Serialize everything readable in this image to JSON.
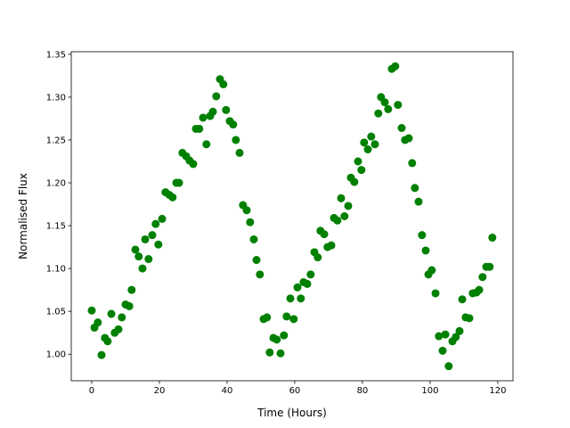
{
  "chart_data": {
    "type": "scatter",
    "xlabel": "Time (Hours)",
    "ylabel": "Normalised Flux",
    "color": "#008000",
    "x": [
      0,
      0.8,
      1.8,
      2.9,
      3.9,
      4.7,
      5.8,
      6.8,
      7.9,
      8.9,
      10,
      11.1,
      11.8,
      12.9,
      13.9,
      15,
      15.8,
      16.8,
      17.9,
      18.9,
      19.7,
      20.8,
      21.8,
      22.9,
      23.9,
      25,
      25.8,
      26.8,
      27.9,
      28.9,
      30,
      30.8,
      31.8,
      32.9,
      33.9,
      35,
      35.8,
      36.8,
      37.9,
      38.9,
      39.7,
      40.8,
      41.8,
      42.6,
      43.7,
      44.7,
      45.8,
      46.8,
      47.9,
      48.7,
      49.7,
      50.8,
      51.8,
      52.6,
      53.7,
      54.7,
      55.8,
      56.8,
      57.6,
      58.7,
      59.7,
      60.8,
      61.8,
      62.6,
      63.7,
      64.7,
      65.8,
      66.8,
      67.6,
      68.7,
      69.7,
      70.8,
      71.6,
      72.6,
      73.7,
      74.7,
      75.8,
      76.6,
      77.6,
      78.7,
      79.7,
      80.5,
      81.6,
      82.6,
      83.7,
      84.7,
      85.5,
      86.6,
      87.6,
      88.7,
      89.7,
      90.5,
      91.6,
      92.6,
      93.7,
      94.7,
      95.5,
      96.6,
      97.6,
      98.7,
      99.5,
      100.5,
      101.6,
      102.6,
      103.7,
      104.5,
      105.5,
      106.6,
      107.6,
      108.7,
      109.5,
      110.5,
      111.6,
      112.6,
      113.7,
      114.5,
      115.5,
      116.6,
      117.6,
      118.4
    ],
    "values": [
      1.051,
      1.031,
      1.037,
      0.999,
      1.019,
      1.015,
      1.047,
      1.025,
      1.029,
      1.043,
      1.058,
      1.056,
      1.075,
      1.122,
      1.114,
      1.1,
      1.134,
      1.111,
      1.139,
      1.152,
      1.128,
      1.158,
      1.189,
      1.186,
      1.183,
      1.2,
      1.2,
      1.235,
      1.231,
      1.226,
      1.222,
      1.263,
      1.263,
      1.276,
      1.245,
      1.278,
      1.283,
      1.301,
      1.321,
      1.315,
      1.285,
      1.272,
      1.268,
      1.25,
      1.235,
      1.174,
      1.168,
      1.154,
      1.134,
      1.11,
      1.093,
      1.041,
      1.043,
      1.002,
      1.019,
      1.017,
      1.001,
      1.022,
      1.044,
      1.065,
      1.041,
      1.078,
      1.065,
      1.084,
      1.082,
      1.093,
      1.119,
      1.113,
      1.144,
      1.14,
      1.125,
      1.127,
      1.159,
      1.156,
      1.182,
      1.161,
      1.173,
      1.206,
      1.201,
      1.225,
      1.215,
      1.247,
      1.239,
      1.254,
      1.245,
      1.281,
      1.3,
      1.294,
      1.286,
      1.333,
      1.336,
      1.291,
      1.264,
      1.25,
      1.252,
      1.223,
      1.194,
      1.178,
      1.139,
      1.121,
      1.093,
      1.098,
      1.071,
      1.021,
      1.004,
      1.023,
      0.986,
      1.015,
      1.02,
      1.027,
      1.064,
      1.043,
      1.042,
      1.071,
      1.072,
      1.075,
      1.09,
      1.102,
      1.102,
      1.136
    ],
    "xlim": [
      -6.05,
      124.5
    ],
    "xticks": [
      0,
      20,
      40,
      60,
      80,
      100,
      120
    ],
    "ylim": [
      0.969,
      1.353
    ],
    "yticks": [
      {
        "value": 1.0,
        "label": "1.00"
      },
      {
        "value": 1.05,
        "label": "1.05"
      },
      {
        "value": 1.1,
        "label": "1.10"
      },
      {
        "value": 1.15,
        "label": "1.15"
      },
      {
        "value": 1.2,
        "label": "1.20"
      },
      {
        "value": 1.25,
        "label": "1.25"
      },
      {
        "value": 1.3,
        "label": "1.30"
      },
      {
        "value": 1.35,
        "label": "1.35"
      }
    ]
  }
}
